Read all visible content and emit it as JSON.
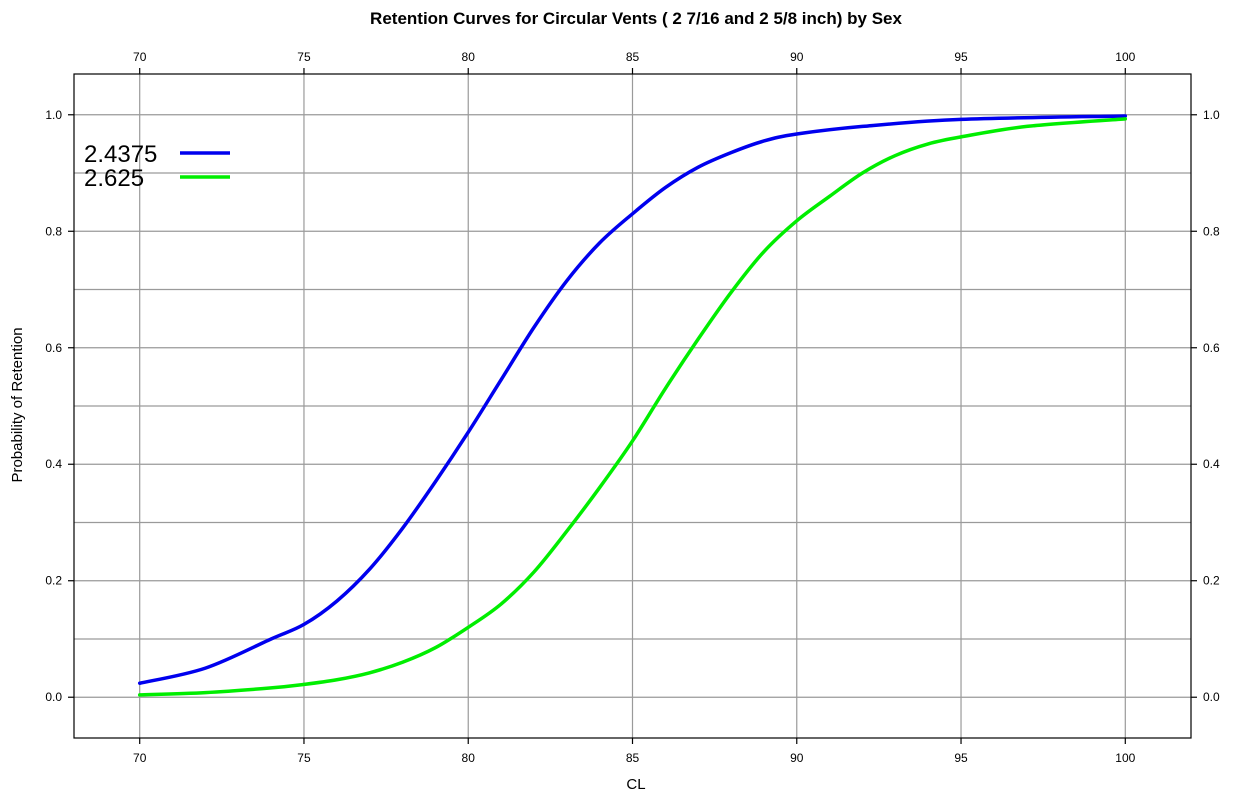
{
  "chart_data": {
    "type": "line",
    "title": "Retention Curves for Circular Vents ( 2 7/16 and 2 5/8 inch) by Sex",
    "xlabel": "CL",
    "ylabel": "Probability of Retention",
    "xlim": [
      68,
      102
    ],
    "ylim": [
      -0.07,
      1.07
    ],
    "x_ticks": [
      70,
      75,
      80,
      85,
      90,
      95,
      100
    ],
    "x_tick_labels": [
      "70",
      "75",
      "80",
      "85",
      "90",
      "95",
      "100"
    ],
    "y_ticks": [
      0.0,
      0.2,
      0.4,
      0.6,
      0.8,
      1.0
    ],
    "y_tick_labels": [
      "0.0",
      "0.2",
      "0.4",
      "0.6",
      "0.8",
      "1.0"
    ],
    "x_grid": [
      70,
      75,
      80,
      85,
      90,
      95,
      100
    ],
    "y_grid": [
      0.0,
      0.1,
      0.2,
      0.3,
      0.4,
      0.5,
      0.6,
      0.7,
      0.8,
      0.9,
      1.0
    ],
    "grid": true,
    "legend_position": "top-left",
    "series": [
      {
        "name": "2.4375",
        "color": "#0000ee",
        "x": [
          70,
          72,
          74,
          75,
          76,
          77,
          78,
          79,
          80,
          81,
          82,
          83,
          84,
          85,
          86,
          87,
          88,
          89,
          90,
          92,
          95,
          100
        ],
        "values": [
          0.024,
          0.05,
          0.1,
          0.125,
          0.165,
          0.22,
          0.29,
          0.37,
          0.455,
          0.545,
          0.635,
          0.715,
          0.78,
          0.83,
          0.875,
          0.91,
          0.935,
          0.955,
          0.967,
          0.98,
          0.992,
          0.998
        ]
      },
      {
        "name": "2.625",
        "color": "#00ee00",
        "x": [
          70,
          72,
          74,
          75,
          76,
          77,
          78,
          79,
          80,
          81,
          82,
          83,
          84,
          85,
          86,
          87,
          88,
          89,
          90,
          91,
          92,
          93,
          94,
          95,
          97,
          100
        ],
        "values": [
          0.004,
          0.008,
          0.016,
          0.022,
          0.03,
          0.042,
          0.06,
          0.085,
          0.12,
          0.16,
          0.215,
          0.285,
          0.36,
          0.44,
          0.53,
          0.615,
          0.695,
          0.765,
          0.818,
          0.86,
          0.9,
          0.93,
          0.95,
          0.962,
          0.98,
          0.993
        ]
      }
    ]
  }
}
